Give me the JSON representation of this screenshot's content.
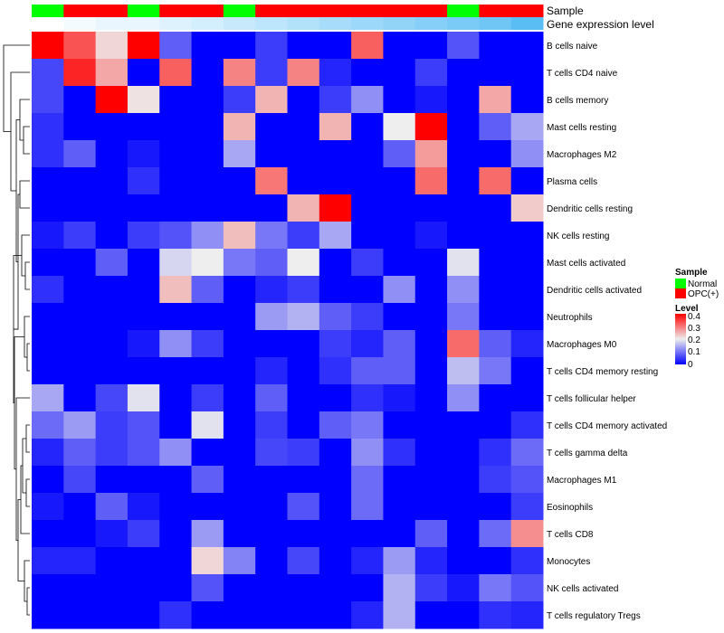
{
  "colors": {
    "normal": "#00ff00",
    "opc": "#ff0000",
    "heat_low": "#0000ff",
    "heat_mid": "#eeeeee",
    "heat_high": "#ff0000",
    "dendrogram": "#000000"
  },
  "annotations": {
    "sample_label": "Sample",
    "level_label": "Gene expression level"
  },
  "legend": {
    "sample_title": "Sample",
    "sample_items": [
      {
        "label": "Normal",
        "color": "#00ff00"
      },
      {
        "label": "OPC(+)",
        "color": "#ff0000"
      }
    ],
    "level_title": "Level",
    "level_ticks": [
      "0.4",
      "0.3",
      "0.2",
      "0.1",
      "0"
    ]
  },
  "chart_data": {
    "type": "heatmap",
    "title": "",
    "xlabel": "",
    "ylabel": "",
    "value_range": [
      0,
      0.4
    ],
    "column_groups": [
      "Normal",
      "OPC(+)",
      "OPC(+)",
      "Normal",
      "OPC(+)",
      "OPC(+)",
      "Normal",
      "OPC(+)",
      "OPC(+)",
      "OPC(+)",
      "OPC(+)",
      "OPC(+)",
      "OPC(+)",
      "Normal",
      "OPC(+)",
      "OPC(+)"
    ],
    "column_levels": [
      0.0,
      0.01,
      0.02,
      0.02,
      0.03,
      0.04,
      0.05,
      0.06,
      0.07,
      0.08,
      0.09,
      0.1,
      0.11,
      0.12,
      0.13,
      0.15
    ],
    "rows": [
      "B cells naive",
      "T cells CD4 naive",
      "B cells memory",
      "Mast cells resting",
      "Macrophages M2",
      "Plasma cells",
      "Dendritic cells resting",
      "NK cells resting",
      "Mast cells activated",
      "Dendritic cells activated",
      "Neutrophils",
      "Macrophages M0",
      "T cells CD4 memory resting",
      "T cells follicular helper",
      "T cells CD4 memory activated",
      "T cells gamma delta",
      "Macrophages M1",
      "Eosinophils",
      "T cells CD8",
      "Monocytes",
      "NK cells activated",
      "T cells regulatory  Tregs"
    ],
    "values": [
      [
        0.4,
        0.33,
        0.22,
        0.4,
        0.08,
        0.0,
        0.0,
        0.05,
        0.0,
        0.0,
        0.32,
        0.0,
        0.0,
        0.07,
        0.0,
        0.0
      ],
      [
        0.06,
        0.37,
        0.26,
        0.0,
        0.32,
        0.0,
        0.29,
        0.05,
        0.29,
        0.03,
        0.0,
        0.0,
        0.05,
        0.0,
        0.0,
        0.0
      ],
      [
        0.06,
        0.0,
        0.4,
        0.21,
        0.0,
        0.0,
        0.05,
        0.25,
        0.0,
        0.05,
        0.12,
        0.0,
        0.02,
        0.0,
        0.26,
        0.0
      ],
      [
        0.04,
        0.0,
        0.0,
        0.0,
        0.0,
        0.0,
        0.25,
        0.0,
        0.0,
        0.25,
        0.0,
        0.2,
        0.4,
        0.0,
        0.08,
        0.14
      ],
      [
        0.04,
        0.08,
        0.0,
        0.02,
        0.0,
        0.0,
        0.14,
        0.0,
        0.0,
        0.0,
        0.0,
        0.08,
        0.27,
        0.0,
        0.0,
        0.12
      ],
      [
        0.0,
        0.0,
        0.0,
        0.04,
        0.0,
        0.0,
        0.0,
        0.3,
        0.0,
        0.0,
        0.0,
        0.0,
        0.31,
        0.0,
        0.31,
        0.0
      ],
      [
        0.0,
        0.0,
        0.0,
        0.0,
        0.0,
        0.0,
        0.0,
        0.0,
        0.25,
        0.4,
        0.0,
        0.0,
        0.0,
        0.0,
        0.0,
        0.23
      ],
      [
        0.02,
        0.05,
        0.0,
        0.05,
        0.07,
        0.12,
        0.24,
        0.1,
        0.05,
        0.14,
        0.0,
        0.0,
        0.02,
        0.0,
        0.0,
        0.0
      ],
      [
        0.0,
        0.0,
        0.08,
        0.0,
        0.18,
        0.2,
        0.1,
        0.08,
        0.2,
        0.0,
        0.05,
        0.0,
        0.0,
        0.19,
        0.0,
        0.0
      ],
      [
        0.04,
        0.0,
        0.0,
        0.0,
        0.24,
        0.08,
        0.0,
        0.03,
        0.05,
        0.0,
        0.0,
        0.12,
        0.0,
        0.12,
        0.0,
        0.0
      ],
      [
        0.0,
        0.0,
        0.0,
        0.0,
        0.0,
        0.0,
        0.0,
        0.13,
        0.15,
        0.08,
        0.05,
        0.0,
        0.0,
        0.1,
        0.0,
        0.0
      ],
      [
        0.0,
        0.0,
        0.0,
        0.02,
        0.12,
        0.05,
        0.0,
        0.0,
        0.0,
        0.05,
        0.03,
        0.08,
        0.0,
        0.31,
        0.08,
        0.03
      ],
      [
        0.0,
        0.0,
        0.0,
        0.0,
        0.0,
        0.0,
        0.0,
        0.03,
        0.0,
        0.04,
        0.08,
        0.08,
        0.0,
        0.16,
        0.1,
        0.0
      ],
      [
        0.14,
        0.0,
        0.06,
        0.19,
        0.0,
        0.05,
        0.0,
        0.08,
        0.0,
        0.0,
        0.04,
        0.02,
        0.0,
        0.12,
        0.0,
        0.0
      ],
      [
        0.09,
        0.13,
        0.05,
        0.07,
        0.0,
        0.19,
        0.0,
        0.05,
        0.0,
        0.08,
        0.1,
        0.0,
        0.0,
        0.0,
        0.0,
        0.04
      ],
      [
        0.03,
        0.08,
        0.05,
        0.07,
        0.12,
        0.0,
        0.0,
        0.06,
        0.05,
        0.0,
        0.12,
        0.04,
        0.0,
        0.0,
        0.04,
        0.09
      ],
      [
        0.0,
        0.06,
        0.0,
        0.0,
        0.0,
        0.08,
        0.0,
        0.0,
        0.0,
        0.0,
        0.09,
        0.0,
        0.0,
        0.0,
        0.05,
        0.07
      ],
      [
        0.02,
        0.0,
        0.08,
        0.02,
        0.0,
        0.0,
        0.0,
        0.0,
        0.07,
        0.0,
        0.09,
        0.0,
        0.0,
        0.0,
        0.0,
        0.05
      ],
      [
        0.0,
        0.0,
        0.02,
        0.05,
        0.0,
        0.13,
        0.0,
        0.0,
        0.0,
        0.0,
        0.0,
        0.0,
        0.08,
        0.0,
        0.09,
        0.28
      ],
      [
        0.03,
        0.03,
        0.0,
        0.0,
        0.0,
        0.22,
        0.11,
        0.0,
        0.06,
        0.0,
        0.03,
        0.13,
        0.03,
        0.0,
        0.0,
        0.04
      ],
      [
        0.0,
        0.0,
        0.0,
        0.0,
        0.0,
        0.07,
        0.0,
        0.0,
        0.0,
        0.0,
        0.0,
        0.15,
        0.05,
        0.02,
        0.1,
        0.07
      ],
      [
        0.0,
        0.0,
        0.0,
        0.0,
        0.04,
        0.0,
        0.0,
        0.0,
        0.0,
        0.0,
        0.03,
        0.15,
        0.0,
        0.0,
        0.04,
        0.03
      ]
    ]
  }
}
